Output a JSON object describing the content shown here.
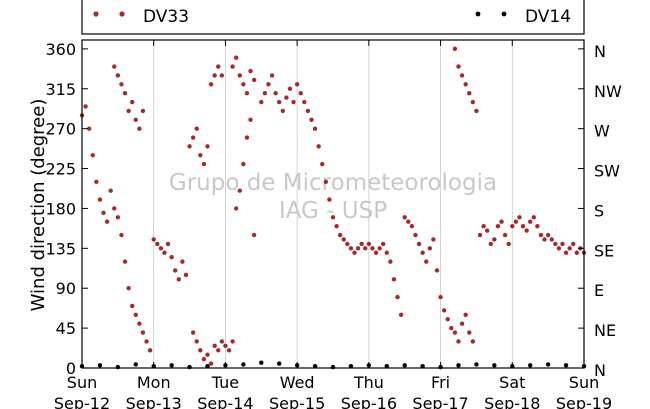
{
  "chart_data": {
    "type": "scatter",
    "ylabel": "Wind direction (degree)",
    "ylim": [
      0,
      370
    ],
    "xlim": [
      "2010-09-12 00:00",
      "2010-09-19 00:00"
    ],
    "y_ticks": [
      0,
      45,
      90,
      135,
      180,
      225,
      270,
      315,
      360
    ],
    "y2_ticks": [
      "N",
      "NE",
      "E",
      "SE",
      "S",
      "SW",
      "W",
      "NW",
      "N"
    ],
    "x_ticks": [
      {
        "day": "Sun",
        "date": "Sep-12"
      },
      {
        "day": "Mon",
        "date": "Sep-13"
      },
      {
        "day": "Tue",
        "date": "Sep-14"
      },
      {
        "day": "Wed",
        "date": "Sep-15"
      },
      {
        "day": "Thu",
        "date": "Sep-16"
      },
      {
        "day": "Fri",
        "date": "Sep-17"
      },
      {
        "day": "Sat",
        "date": "Sep-18"
      },
      {
        "day": "Sun",
        "date": "Sep-19"
      }
    ],
    "grid": "vertical",
    "legend": "top",
    "watermark": [
      "Grupo de Micrometeorologia",
      "IAG - USP"
    ],
    "series": [
      {
        "name": "DV33",
        "color": "#a52a2a",
        "points": [
          [
            0.0,
            285
          ],
          [
            0.05,
            295
          ],
          [
            0.1,
            270
          ],
          [
            0.15,
            240
          ],
          [
            0.2,
            210
          ],
          [
            0.25,
            190
          ],
          [
            0.3,
            175
          ],
          [
            0.35,
            165
          ],
          [
            0.4,
            200
          ],
          [
            0.45,
            180
          ],
          [
            0.5,
            170
          ],
          [
            0.55,
            150
          ],
          [
            0.6,
            120
          ],
          [
            0.65,
            90
          ],
          [
            0.7,
            70
          ],
          [
            0.75,
            60
          ],
          [
            0.8,
            50
          ],
          [
            0.85,
            40
          ],
          [
            0.9,
            30
          ],
          [
            0.95,
            20
          ],
          [
            0.45,
            340
          ],
          [
            0.5,
            330
          ],
          [
            0.55,
            320
          ],
          [
            0.6,
            310
          ],
          [
            0.65,
            290
          ],
          [
            0.7,
            300
          ],
          [
            0.75,
            280
          ],
          [
            0.8,
            270
          ],
          [
            0.85,
            290
          ],
          [
            1.0,
            145
          ],
          [
            1.05,
            140
          ],
          [
            1.1,
            135
          ],
          [
            1.15,
            130
          ],
          [
            1.2,
            140
          ],
          [
            1.25,
            125
          ],
          [
            1.3,
            110
          ],
          [
            1.35,
            100
          ],
          [
            1.4,
            120
          ],
          [
            1.45,
            105
          ],
          [
            1.5,
            250
          ],
          [
            1.55,
            260
          ],
          [
            1.6,
            270
          ],
          [
            1.65,
            240
          ],
          [
            1.7,
            230
          ],
          [
            1.75,
            250
          ],
          [
            1.8,
            320
          ],
          [
            1.85,
            330
          ],
          [
            1.9,
            340
          ],
          [
            1.95,
            330
          ],
          [
            1.55,
            40
          ],
          [
            1.6,
            30
          ],
          [
            1.65,
            20
          ],
          [
            1.7,
            10
          ],
          [
            1.75,
            15
          ],
          [
            1.8,
            5
          ],
          [
            1.85,
            25
          ],
          [
            1.9,
            20
          ],
          [
            1.95,
            30
          ],
          [
            2.0,
            25
          ],
          [
            2.05,
            20
          ],
          [
            2.1,
            30
          ],
          [
            2.1,
            340
          ],
          [
            2.15,
            350
          ],
          [
            2.2,
            330
          ],
          [
            2.25,
            320
          ],
          [
            2.3,
            310
          ],
          [
            2.35,
            335
          ],
          [
            2.4,
            325
          ],
          [
            2.15,
            180
          ],
          [
            2.2,
            200
          ],
          [
            2.25,
            230
          ],
          [
            2.3,
            260
          ],
          [
            2.35,
            280
          ],
          [
            2.4,
            150
          ],
          [
            2.5,
            300
          ],
          [
            2.55,
            310
          ],
          [
            2.6,
            320
          ],
          [
            2.65,
            330
          ],
          [
            2.7,
            310
          ],
          [
            2.75,
            300
          ],
          [
            2.8,
            290
          ],
          [
            2.85,
            305
          ],
          [
            2.9,
            315
          ],
          [
            2.95,
            300
          ],
          [
            3.0,
            320
          ],
          [
            3.05,
            310
          ],
          [
            3.1,
            300
          ],
          [
            3.15,
            290
          ],
          [
            3.2,
            280
          ],
          [
            3.25,
            270
          ],
          [
            3.3,
            250
          ],
          [
            3.35,
            230
          ],
          [
            3.4,
            210
          ],
          [
            3.45,
            190
          ],
          [
            3.5,
            170
          ],
          [
            3.55,
            160
          ],
          [
            3.6,
            150
          ],
          [
            3.65,
            145
          ],
          [
            3.7,
            140
          ],
          [
            3.75,
            135
          ],
          [
            3.8,
            130
          ],
          [
            3.85,
            135
          ],
          [
            3.9,
            140
          ],
          [
            3.95,
            135
          ],
          [
            4.0,
            140
          ],
          [
            4.05,
            135
          ],
          [
            4.1,
            130
          ],
          [
            4.15,
            135
          ],
          [
            4.2,
            140
          ],
          [
            4.25,
            130
          ],
          [
            4.3,
            120
          ],
          [
            4.35,
            100
          ],
          [
            4.4,
            80
          ],
          [
            4.45,
            60
          ],
          [
            4.5,
            170
          ],
          [
            4.55,
            165
          ],
          [
            4.6,
            160
          ],
          [
            4.65,
            150
          ],
          [
            4.7,
            140
          ],
          [
            4.75,
            130
          ],
          [
            4.8,
            120
          ],
          [
            4.85,
            135
          ],
          [
            4.9,
            145
          ],
          [
            4.95,
            110
          ],
          [
            5.0,
            80
          ],
          [
            5.05,
            65
          ],
          [
            5.1,
            55
          ],
          [
            5.15,
            45
          ],
          [
            5.2,
            40
          ],
          [
            5.25,
            30
          ],
          [
            5.3,
            50
          ],
          [
            5.35,
            60
          ],
          [
            5.4,
            40
          ],
          [
            5.45,
            30
          ],
          [
            5.2,
            360
          ],
          [
            5.25,
            340
          ],
          [
            5.3,
            330
          ],
          [
            5.35,
            320
          ],
          [
            5.4,
            310
          ],
          [
            5.45,
            300
          ],
          [
            5.5,
            290
          ],
          [
            5.55,
            150
          ],
          [
            5.6,
            160
          ],
          [
            5.65,
            155
          ],
          [
            5.7,
            140
          ],
          [
            5.75,
            145
          ],
          [
            5.8,
            160
          ],
          [
            5.85,
            165
          ],
          [
            5.9,
            150
          ],
          [
            5.95,
            140
          ],
          [
            6.0,
            160
          ],
          [
            6.05,
            165
          ],
          [
            6.1,
            170
          ],
          [
            6.15,
            160
          ],
          [
            6.2,
            155
          ],
          [
            6.25,
            165
          ],
          [
            6.3,
            170
          ],
          [
            6.35,
            160
          ],
          [
            6.4,
            150
          ],
          [
            6.45,
            145
          ],
          [
            6.5,
            150
          ],
          [
            6.55,
            145
          ],
          [
            6.6,
            140
          ],
          [
            6.65,
            135
          ],
          [
            6.7,
            140
          ],
          [
            6.75,
            130
          ],
          [
            6.8,
            135
          ],
          [
            6.85,
            140
          ],
          [
            6.9,
            130
          ],
          [
            6.95,
            135
          ],
          [
            7.0,
            130
          ]
        ]
      },
      {
        "name": "DV14",
        "color": "#000000",
        "points": [
          [
            0.0,
            2
          ],
          [
            0.25,
            3
          ],
          [
            0.5,
            1
          ],
          [
            0.75,
            4
          ],
          [
            1.0,
            2
          ],
          [
            1.25,
            3
          ],
          [
            1.5,
            1
          ],
          [
            1.75,
            2
          ],
          [
            2.0,
            3
          ],
          [
            2.25,
            4
          ],
          [
            2.5,
            6
          ],
          [
            2.75,
            5
          ],
          [
            3.0,
            3
          ],
          [
            3.25,
            2
          ],
          [
            3.5,
            1
          ],
          [
            3.75,
            2
          ],
          [
            4.0,
            3
          ],
          [
            4.25,
            2
          ],
          [
            4.5,
            3
          ],
          [
            4.75,
            2
          ],
          [
            5.0,
            1
          ],
          [
            5.25,
            3
          ],
          [
            5.5,
            4
          ],
          [
            5.75,
            3
          ],
          [
            6.0,
            2
          ],
          [
            6.25,
            3
          ],
          [
            6.5,
            4
          ],
          [
            6.75,
            3
          ],
          [
            7.0,
            2
          ]
        ]
      }
    ]
  }
}
